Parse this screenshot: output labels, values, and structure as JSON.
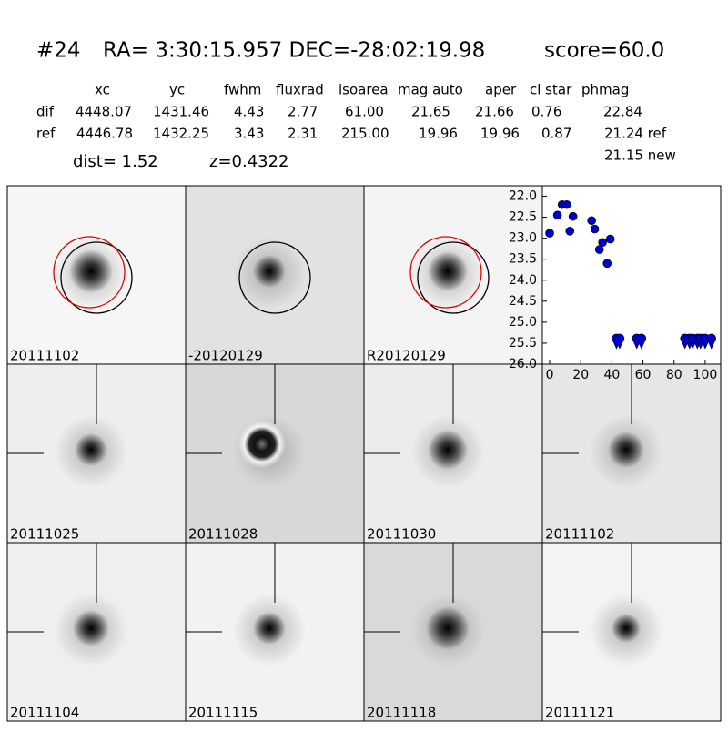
{
  "header": {
    "id": "#24",
    "coords": "RA= 3:30:15.957 DEC=-28:02:19.98",
    "score": "score=60.0",
    "columns": [
      "xc",
      "yc",
      "fwhm",
      "fluxrad",
      "isoarea",
      "mag auto",
      "aper",
      "cl star",
      "phmag"
    ],
    "rows": [
      {
        "label": "dif",
        "cells": [
          "4448.07",
          "1431.46",
          "4.43",
          "2.77",
          "61.00",
          "21.65",
          "21.66",
          "0.76",
          "22.84"
        ]
      },
      {
        "label": "ref",
        "cells": [
          "4446.78",
          "1432.25",
          "3.43",
          "2.31",
          "215.00",
          "19.96",
          "19.96",
          "0.87",
          "21.24 ref"
        ]
      }
    ],
    "extra": "21.15 new",
    "dist": "dist=  1.52",
    "z": "z=0.4322"
  },
  "panels": [
    {
      "label": "20111102"
    },
    {
      "label": "-20120129"
    },
    {
      "label": "R20120129"
    },
    {
      "label": "20111025"
    },
    {
      "label": "20111028"
    },
    {
      "label": "20111030"
    },
    {
      "label": "20111102",
      "color": "#ff0000"
    },
    {
      "label": "20111104"
    },
    {
      "label": "20111115"
    },
    {
      "label": "20111118"
    },
    {
      "label": "20111121"
    }
  ],
  "chart_data": {
    "type": "scatter",
    "xlim": [
      -4.7,
      110
    ],
    "ylim": [
      21.75,
      26.0
    ],
    "y_inverted": true,
    "xticks": [
      0,
      20,
      40,
      60,
      80,
      100
    ],
    "yticks": [
      {
        "value": 22.0,
        "label": "22.0"
      },
      {
        "value": 22.5,
        "label": "22.5"
      },
      {
        "value": 23.0,
        "label": "23.0"
      },
      {
        "value": 23.5,
        "label": "23.5"
      },
      {
        "value": 24.0,
        "label": "24.0"
      },
      {
        "value": 24.5,
        "label": "24.5"
      },
      {
        "value": 25.0,
        "label": "25.0"
      },
      {
        "value": 25.5,
        "label": "25.5"
      },
      {
        "value": 26.0,
        "label": "26.0"
      }
    ],
    "series": [
      {
        "color": "#0000cc",
        "marker": "circle",
        "x": [
          0,
          5,
          8,
          11,
          13,
          15,
          27,
          29,
          32,
          34,
          37,
          39
        ],
        "values": [
          22.88,
          22.45,
          22.2,
          22.2,
          22.83,
          22.48,
          22.58,
          22.78,
          23.27,
          23.1,
          23.6,
          23.02
        ]
      },
      {
        "color": "#0000cc",
        "marker": "triangle-down",
        "x": [
          43,
          45,
          56,
          59,
          87,
          90,
          92,
          95,
          97,
          100,
          104
        ],
        "values": [
          25.5,
          25.5,
          25.5,
          25.5,
          25.5,
          25.5,
          25.5,
          25.5,
          25.5,
          25.5,
          25.5
        ]
      }
    ]
  }
}
